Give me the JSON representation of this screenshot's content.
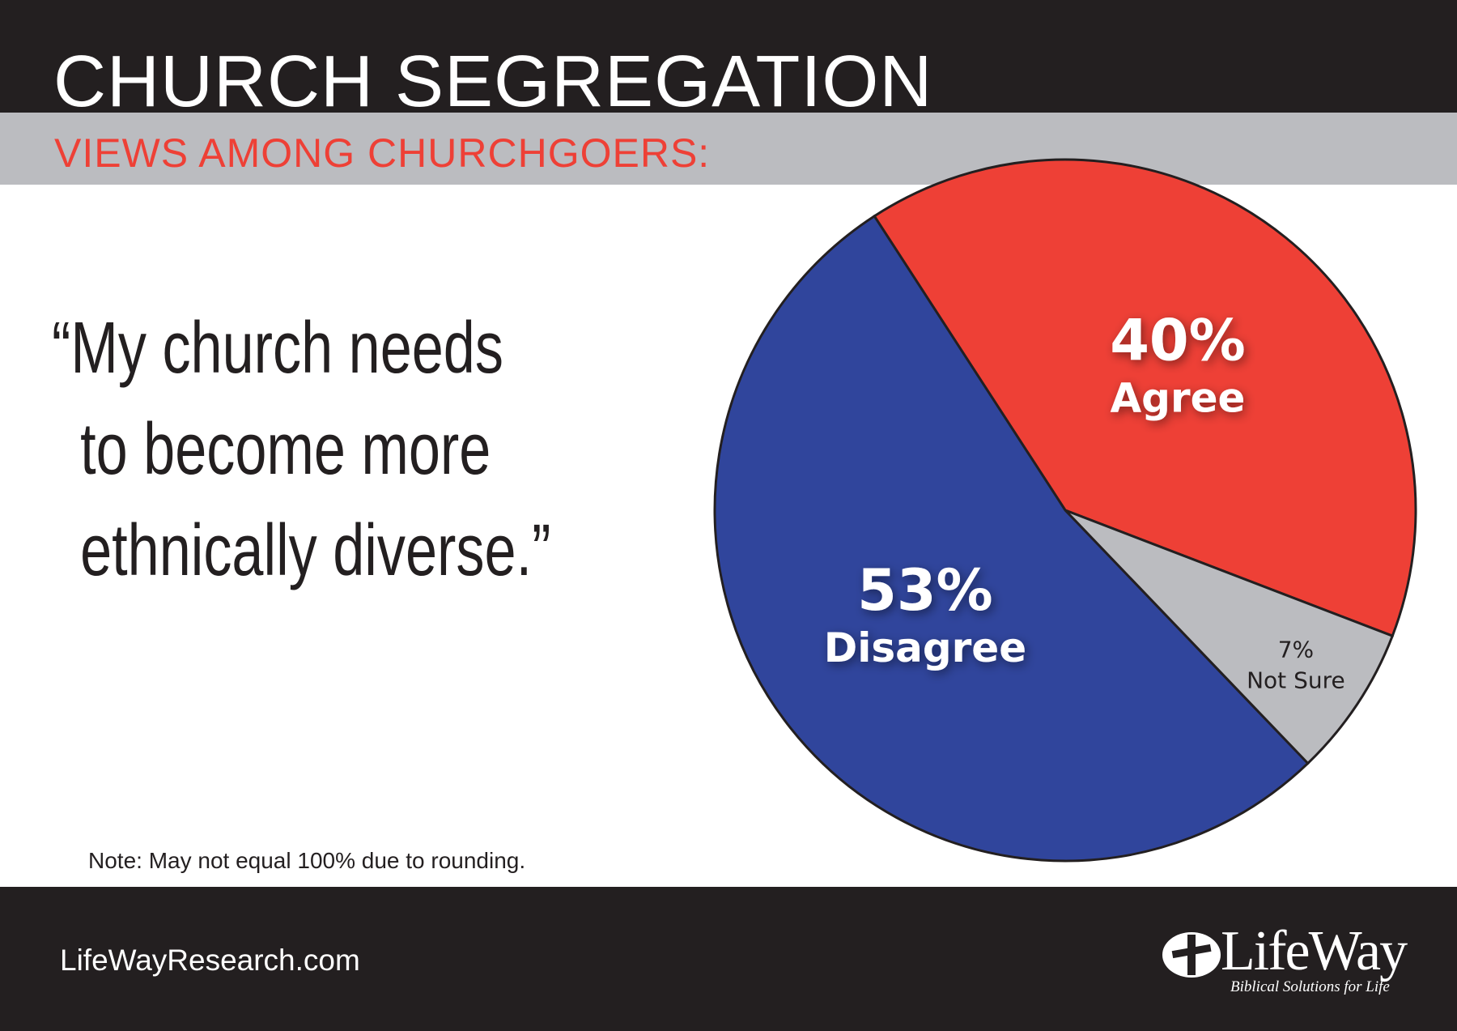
{
  "header": {
    "title": "CHURCH SEGREGATION",
    "subtitle": "VIEWS AMONG CHURCHGOERS:"
  },
  "quote": {
    "line1": "“My church needs",
    "line2": "to become more",
    "line3": "ethnically diverse.”"
  },
  "note": "Note: May not equal 100% due to rounding.",
  "footer": {
    "url": "LifeWayResearch.com",
    "logo_text": "LifeWay",
    "logo_tagline": "Biblical Solutions for Life"
  },
  "colors": {
    "agree": "#ee4036",
    "disagree": "#30459c",
    "not_sure": "#bbbcc0",
    "header_band": "#231f20",
    "subheader_band": "#bbbcc0",
    "subtitle_text": "#ee4036"
  },
  "chart_data": {
    "type": "pie",
    "title": "",
    "slices": [
      {
        "label": "Agree",
        "value": 40,
        "value_label": "40%",
        "color": "#ee4036"
      },
      {
        "label": "Not Sure",
        "value": 7,
        "value_label": "7%",
        "color": "#bbbcc0"
      },
      {
        "label": "Disagree",
        "value": 53,
        "value_label": "53%",
        "color": "#30459c"
      }
    ],
    "legend": "none"
  }
}
